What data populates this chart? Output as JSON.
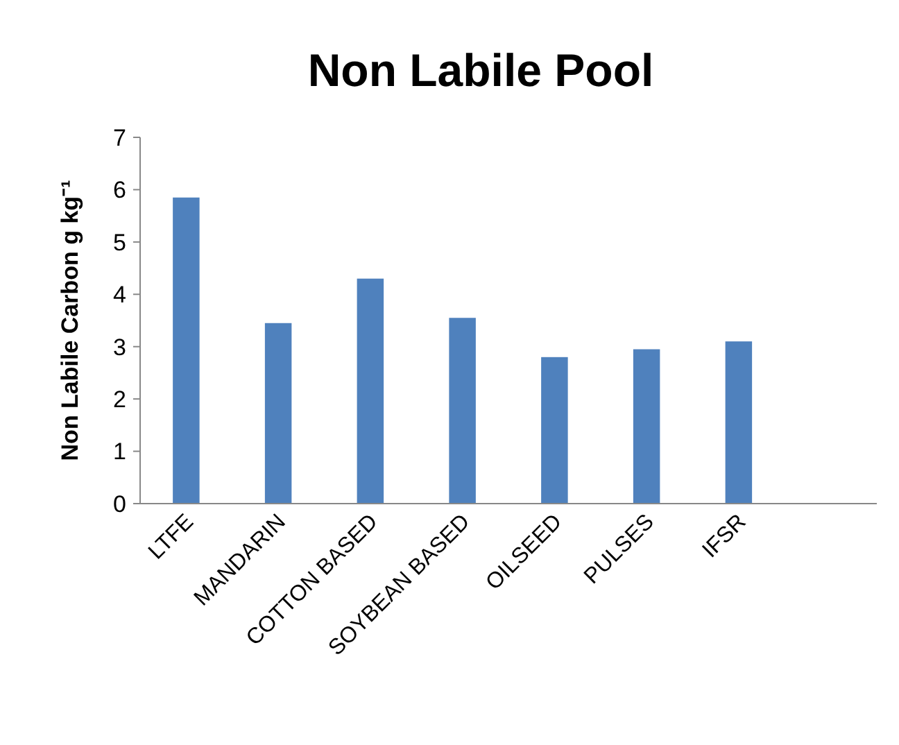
{
  "chart_data": {
    "type": "bar",
    "title": "Non Labile Pool",
    "ylabel": "Non Labile Carbon g kg⁻¹",
    "categories": [
      "LTFE",
      "MANDARIN",
      "COTTON BASED",
      "SOYBEAN BASED",
      "OILSEED",
      "PULSES",
      "IFSR",
      null
    ],
    "values": [
      5.85,
      3.45,
      4.3,
      3.55,
      2.8,
      2.95,
      3.1,
      null
    ],
    "color": "#4f81bd",
    "ylim": [
      0,
      7
    ],
    "yticks": [
      0,
      1,
      2,
      3,
      4,
      5,
      6,
      7
    ]
  }
}
